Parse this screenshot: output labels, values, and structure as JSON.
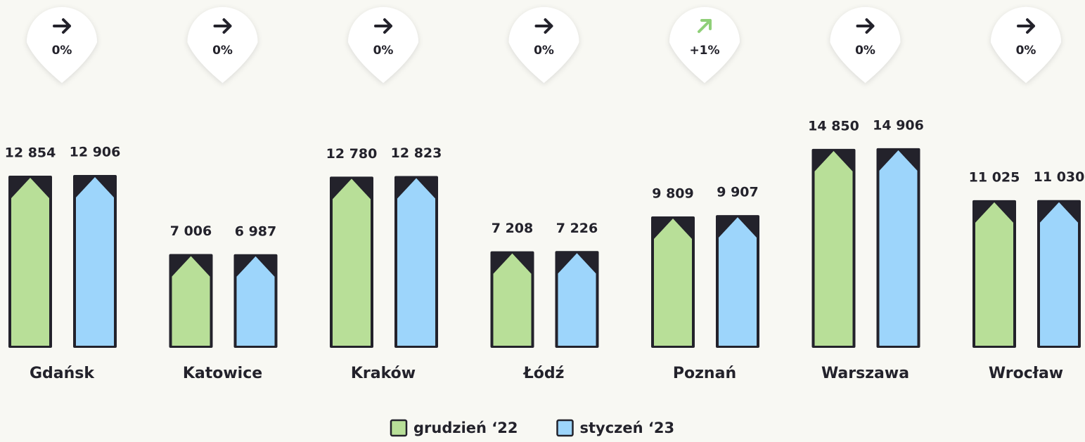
{
  "chart_data": {
    "type": "bar",
    "categories": [
      "Gdańsk",
      "Katowice",
      "Kraków",
      "Łódź",
      "Poznań",
      "Warszawa",
      "Wrocław"
    ],
    "series": [
      {
        "name": "grudzień ‘22",
        "color": "#b8df98",
        "values": [
          12854,
          7006,
          12780,
          7208,
          9809,
          14850,
          11025
        ],
        "value_labels": [
          "12 854",
          "7 006",
          "12 780",
          "7 208",
          "9 809",
          "14 850",
          "11 025"
        ]
      },
      {
        "name": "styczeń ‘23",
        "color": "#9dd5fb",
        "values": [
          12906,
          6987,
          12823,
          7226,
          9907,
          14906,
          11030
        ],
        "value_labels": [
          "12 906",
          "6 987",
          "12 823",
          "7 226",
          "9 907",
          "14 906",
          "11 030"
        ]
      }
    ],
    "changes": [
      0,
      0,
      0,
      0,
      1,
      0,
      0
    ],
    "change_labels": [
      "0%",
      "0%",
      "0%",
      "0%",
      "+1%",
      "0%",
      "0%"
    ],
    "ylim": [
      0,
      16000
    ]
  }
}
